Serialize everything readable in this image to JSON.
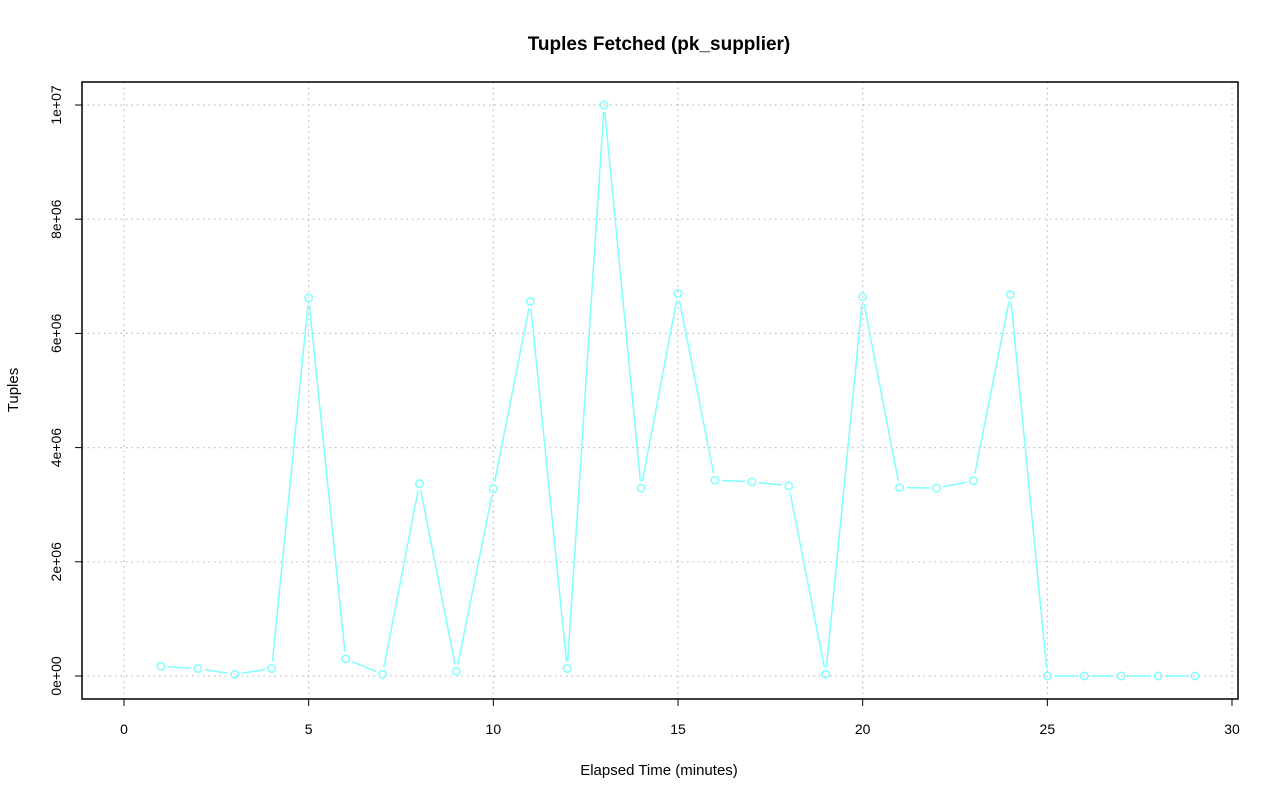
{
  "chart_data": {
    "type": "line",
    "title": "Tuples Fetched (pk_supplier)",
    "xlabel": "Elapsed Time (minutes)",
    "ylabel": "Tuples",
    "xlim": [
      0,
      30
    ],
    "ylim": [
      0,
      10000000
    ],
    "x_ticks": [
      0,
      5,
      10,
      15,
      20,
      25,
      30
    ],
    "x_tick_labels": [
      "0",
      "5",
      "10",
      "15",
      "20",
      "25",
      "30"
    ],
    "y_ticks": [
      0,
      2000000,
      4000000,
      6000000,
      8000000,
      10000000
    ],
    "y_tick_labels": [
      "0e+00",
      "2e+06",
      "4e+06",
      "6e+06",
      "8e+06",
      "1e+07"
    ],
    "grid": true,
    "color": "#80ffff",
    "series": [
      {
        "x": [
          1,
          2,
          3,
          4,
          5,
          6,
          7,
          8,
          9,
          10,
          11,
          12,
          13,
          14,
          15,
          16,
          17,
          18,
          19,
          20,
          21,
          22,
          23,
          24,
          25,
          26,
          27,
          28,
          29
        ],
        "values": [
          170000,
          130000,
          30000,
          130000,
          6620000,
          300000,
          30000,
          3370000,
          80000,
          3280000,
          6560000,
          130000,
          10000000,
          3290000,
          6700000,
          3430000,
          3400000,
          3330000,
          30000,
          6640000,
          3300000,
          3290000,
          3420000,
          6680000,
          0,
          0,
          0,
          0,
          0
        ]
      }
    ]
  }
}
